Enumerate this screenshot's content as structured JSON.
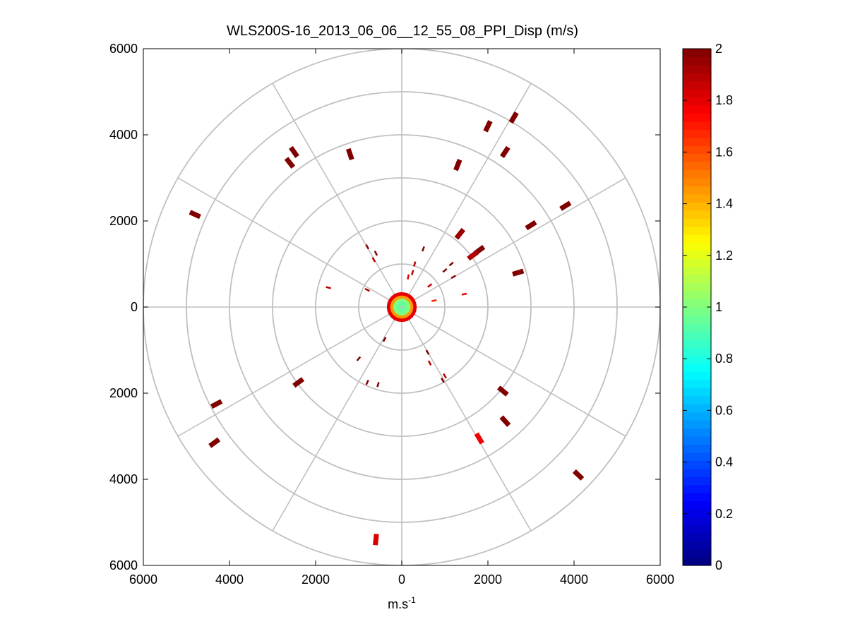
{
  "chart_data": {
    "type": "scatter",
    "subtype": "polar-ppi",
    "title": "WLS200S-16_2013_06_06__12_55_08_PPI_Disp (m/s)",
    "xlabel_base": "m.s",
    "xlabel_sup": "-1",
    "ylabel": "",
    "xlim": [
      -6000,
      6000
    ],
    "ylim": [
      -6000,
      6000
    ],
    "x_ticks": [
      -6000,
      -4000,
      -2000,
      0,
      2000,
      4000,
      6000
    ],
    "x_tick_labels": [
      "6000",
      "4000",
      "2000",
      "0",
      "2000",
      "4000",
      "6000"
    ],
    "y_ticks": [
      6000,
      4000,
      2000,
      0,
      -2000,
      -4000,
      -6000
    ],
    "y_tick_labels": [
      "6000",
      "4000",
      "2000",
      "0",
      "2000",
      "4000",
      "6000"
    ],
    "range_rings": [
      1000,
      2000,
      3000,
      4000,
      5000,
      6000
    ],
    "spoke_angles_deg": [
      0,
      30,
      60,
      90,
      120,
      150,
      180,
      210,
      240,
      270,
      300,
      330
    ],
    "colorbar": {
      "min": 0,
      "max": 2,
      "ticks": [
        0,
        0.2,
        0.4,
        0.6,
        0.8,
        1,
        1.2,
        1.4,
        1.6,
        1.8,
        2
      ],
      "tick_labels": [
        "0",
        "0.2",
        "0.4",
        "0.6",
        "0.8",
        "1",
        "1.2",
        "1.4",
        "1.6",
        "1.8",
        "2"
      ],
      "colormap": "jet",
      "levels": 64
    },
    "gate_length_m": 130,
    "points": [
      {
        "x": 2600,
        "y": 4400,
        "v": 2.0
      },
      {
        "x": 2000,
        "y": 4200,
        "v": 2.0
      },
      {
        "x": 2400,
        "y": 3600,
        "v": 2.0
      },
      {
        "x": 1300,
        "y": 3300,
        "v": 2.0
      },
      {
        "x": -1200,
        "y": 3550,
        "v": 2.0
      },
      {
        "x": -2500,
        "y": 3600,
        "v": 2.0
      },
      {
        "x": -2600,
        "y": 3350,
        "v": 2.0
      },
      {
        "x": -4800,
        "y": 2150,
        "v": 2.0
      },
      {
        "x": 3800,
        "y": 2350,
        "v": 2.0
      },
      {
        "x": 3000,
        "y": 1900,
        "v": 2.0
      },
      {
        "x": 2700,
        "y": 800,
        "v": 2.0
      },
      {
        "x": 1350,
        "y": 1700,
        "v": 1.95
      },
      {
        "x": 1800,
        "y": 1320,
        "v": 2.0
      },
      {
        "x": 1650,
        "y": 1200,
        "v": 1.9
      },
      {
        "x": -4300,
        "y": -2250,
        "v": 2.0
      },
      {
        "x": -4350,
        "y": -3150,
        "v": 2.0
      },
      {
        "x": -2400,
        "y": -1750,
        "v": 2.0
      },
      {
        "x": 2350,
        "y": -1950,
        "v": 2.0
      },
      {
        "x": 2400,
        "y": -2650,
        "v": 2.0
      },
      {
        "x": 1800,
        "y": -3050,
        "v": 1.78
      },
      {
        "x": 4100,
        "y": -3900,
        "v": 2.0
      },
      {
        "x": -600,
        "y": -5400,
        "v": 1.82
      }
    ],
    "small_points": [
      {
        "x": -800,
        "y": 1400,
        "v": 2.0
      },
      {
        "x": -600,
        "y": 1250,
        "v": 2.0
      },
      {
        "x": -650,
        "y": 1100,
        "v": 1.9
      },
      {
        "x": 500,
        "y": 1350,
        "v": 2.0
      },
      {
        "x": 300,
        "y": 1000,
        "v": 1.9
      },
      {
        "x": 1150,
        "y": 1000,
        "v": 2.0
      },
      {
        "x": 1000,
        "y": 850,
        "v": 2.0
      },
      {
        "x": 1200,
        "y": 700,
        "v": 1.95
      },
      {
        "x": 250,
        "y": 800,
        "v": 1.9
      },
      {
        "x": 150,
        "y": 700,
        "v": 1.8
      },
      {
        "x": 650,
        "y": 500,
        "v": 1.85
      },
      {
        "x": -1700,
        "y": 450,
        "v": 1.9
      },
      {
        "x": -800,
        "y": 400,
        "v": 1.9
      },
      {
        "x": 1450,
        "y": 300,
        "v": 1.8
      },
      {
        "x": 750,
        "y": 150,
        "v": 1.7
      },
      {
        "x": -400,
        "y": -750,
        "v": 2.0
      },
      {
        "x": -1000,
        "y": -1200,
        "v": 2.0
      },
      {
        "x": 600,
        "y": -1050,
        "v": 2.0
      },
      {
        "x": 650,
        "y": -1300,
        "v": 1.9
      },
      {
        "x": -800,
        "y": -1750,
        "v": 2.0
      },
      {
        "x": -550,
        "y": -1800,
        "v": 2.0
      },
      {
        "x": 950,
        "y": -1700,
        "v": 2.0
      },
      {
        "x": 1000,
        "y": -1600,
        "v": 1.9
      }
    ],
    "center_ring": [
      {
        "r": 300,
        "v": 1.8
      },
      {
        "r": 220,
        "v": 1.45
      },
      {
        "r": 150,
        "v": 1.0
      },
      {
        "r": 80,
        "v": 0.95
      }
    ]
  }
}
